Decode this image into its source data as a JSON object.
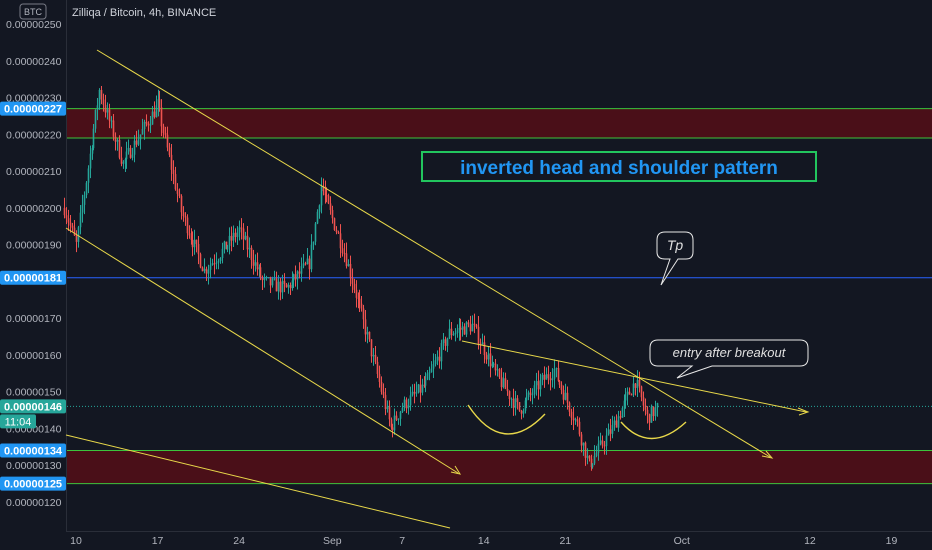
{
  "header": {
    "currency_badge": "BTC",
    "symbol_title": "Zilliqa / Bitcoin, 4h, BINANCE"
  },
  "annotations": {
    "pattern_label": "inverted head and shoulder pattern",
    "tp_label": "Tp",
    "entry_label": "entry after breakout"
  },
  "price_tags": {
    "zone_top": "0.00000227",
    "tp_line": "0.00000181",
    "last_price": "0.00000146",
    "countdown": "11:04",
    "zone_low_top": "0.00000134",
    "zone_low_bottom": "0.00000125"
  },
  "colors": {
    "background": "#131722",
    "up": "#26a69a",
    "down": "#ef5350",
    "zone_fill": "#4a0f18",
    "zone_border": "#3cc43c",
    "tp_line": "#2962ff",
    "trendline": "#e8d84a",
    "label_text": "#2196f3",
    "label_border": "#22c55e"
  },
  "chart_data": {
    "type": "candlestick",
    "title": "Zilliqa / Bitcoin, 4h, BINANCE",
    "ylim": [
      1.165e-06,
      2.545e-06
    ],
    "y_ticks": [
      "0.00000250",
      "0.00000240",
      "0.00000230",
      "0.00000220",
      "0.00000210",
      "0.00000200",
      "0.00000190",
      "0.00000170",
      "0.00000160",
      "0.00000150",
      "0.00000140",
      "0.00000130",
      "0.00000120"
    ],
    "x_ticks": [
      "10",
      "17",
      "24",
      "Sep",
      "7",
      "14",
      "21",
      "Oct",
      "12",
      "19"
    ],
    "x_range_days": [
      "2020-08-10",
      "2020-10-22"
    ],
    "zones": [
      {
        "from": 2.19e-06,
        "to": 2.27e-06
      },
      {
        "from": 1.25e-06,
        "to": 1.34e-06
      }
    ],
    "tp_level": 1.81e-06,
    "last_price": 1.46e-06,
    "price_path": [
      [
        "2020-08-09",
        2e-06
      ],
      [
        "2020-08-10",
        1.9e-06
      ],
      [
        "2020-08-12",
        2.32e-06
      ],
      [
        "2020-08-14",
        2.12e-06
      ],
      [
        "2020-08-17",
        2.28e-06
      ],
      [
        "2020-08-19",
        1.99e-06
      ],
      [
        "2020-08-21",
        1.83e-06
      ],
      [
        "2020-08-23",
        1.9e-06
      ],
      [
        "2020-08-24",
        1.94e-06
      ],
      [
        "2020-08-26",
        1.8e-06
      ],
      [
        "2020-08-28",
        1.78e-06
      ],
      [
        "2020-08-30",
        1.85e-06
      ],
      [
        "2020-08-31",
        2.06e-06
      ],
      [
        "2020-09-02",
        1.88e-06
      ],
      [
        "2020-09-04",
        1.65e-06
      ],
      [
        "2020-09-06",
        1.4e-06
      ],
      [
        "2020-09-07",
        1.46e-06
      ],
      [
        "2020-09-09",
        1.52e-06
      ],
      [
        "2020-09-11",
        1.66e-06
      ],
      [
        "2020-09-13",
        1.68e-06
      ],
      [
        "2020-09-15",
        1.55e-06
      ],
      [
        "2020-09-17",
        1.45e-06
      ],
      [
        "2020-09-19",
        1.53e-06
      ],
      [
        "2020-09-20",
        1.56e-06
      ],
      [
        "2020-09-22",
        1.41e-06
      ],
      [
        "2020-09-23",
        1.3e-06
      ],
      [
        "2020-09-25",
        1.4e-06
      ],
      [
        "2020-09-27",
        1.53e-06
      ],
      [
        "2020-09-28",
        1.43e-06
      ],
      [
        "2020-09-29",
        1.46e-06
      ]
    ]
  }
}
